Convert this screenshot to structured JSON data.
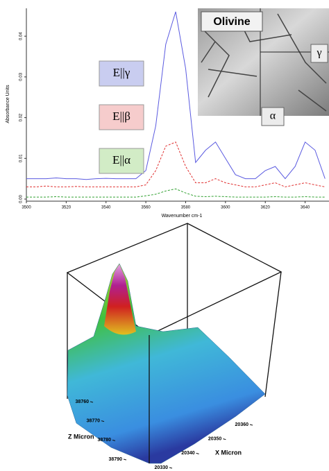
{
  "chart_data": [
    {
      "type": "line",
      "x_label": "Wavenumber cm-1",
      "y_label": "Absorbance Units",
      "x": [
        3500,
        3505,
        3510,
        3515,
        3520,
        3525,
        3530,
        3535,
        3540,
        3545,
        3550,
        3555,
        3560,
        3565,
        3570,
        3575,
        3580,
        3585,
        3590,
        3595,
        3600,
        3605,
        3610,
        3615,
        3620,
        3625,
        3630,
        3635,
        3640,
        3645,
        3650
      ],
      "series": [
        {
          "name": "E||γ",
          "color": "#5a5ae0",
          "legend_color": "#c9cdf0",
          "dash": false,
          "values": [
            0.005,
            0.005,
            0.005,
            0.0052,
            0.005,
            0.005,
            0.0048,
            0.005,
            0.0051,
            0.005,
            0.005,
            0.005,
            0.007,
            0.018,
            0.038,
            0.046,
            0.032,
            0.009,
            0.012,
            0.014,
            0.01,
            0.006,
            0.005,
            0.005,
            0.007,
            0.008,
            0.005,
            0.008,
            0.014,
            0.012,
            0.005
          ]
        },
        {
          "name": "E||β",
          "color": "#e03030",
          "legend_color": "#f6cccc",
          "dash": true,
          "values": [
            0.003,
            0.003,
            0.0032,
            0.003,
            0.003,
            0.0031,
            0.003,
            0.003,
            0.003,
            0.003,
            0.003,
            0.003,
            0.0035,
            0.007,
            0.013,
            0.014,
            0.008,
            0.004,
            0.004,
            0.005,
            0.004,
            0.0035,
            0.003,
            0.003,
            0.0035,
            0.004,
            0.003,
            0.0035,
            0.004,
            0.0035,
            0.003
          ]
        },
        {
          "name": "E||α",
          "color": "#30a030",
          "legend_color": "#d2ecc6",
          "dash": true,
          "values": [
            0.0005,
            0.0005,
            0.0005,
            0.0006,
            0.0005,
            0.0005,
            0.0005,
            0.0005,
            0.0005,
            0.0005,
            0.0005,
            0.0005,
            0.0008,
            0.0012,
            0.002,
            0.0025,
            0.0015,
            0.0007,
            0.0006,
            0.0007,
            0.0006,
            0.0005,
            0.0005,
            0.0005,
            0.0005,
            0.0006,
            0.0005,
            0.0005,
            0.0006,
            0.0005,
            0.0005
          ]
        }
      ],
      "xlim": [
        3500,
        3652
      ],
      "xticks": [
        3500,
        3520,
        3540,
        3560,
        3580,
        3600,
        3620,
        3640
      ],
      "ylim": [
        0,
        0.0465
      ],
      "yticks": [
        {
          "value": 0,
          "label": "0.00"
        },
        0.01,
        0.02,
        0.03,
        0.04
      ],
      "inset": {
        "title": "Olivine",
        "labels": [
          "γ",
          "α"
        ]
      }
    },
    {
      "type": "surface",
      "x_label": "X Micron",
      "z_label": "Z Micron",
      "xticks": [
        20330,
        20340,
        20350,
        20360
      ],
      "zticks": [
        38760,
        38770,
        38780,
        38790
      ]
    }
  ]
}
